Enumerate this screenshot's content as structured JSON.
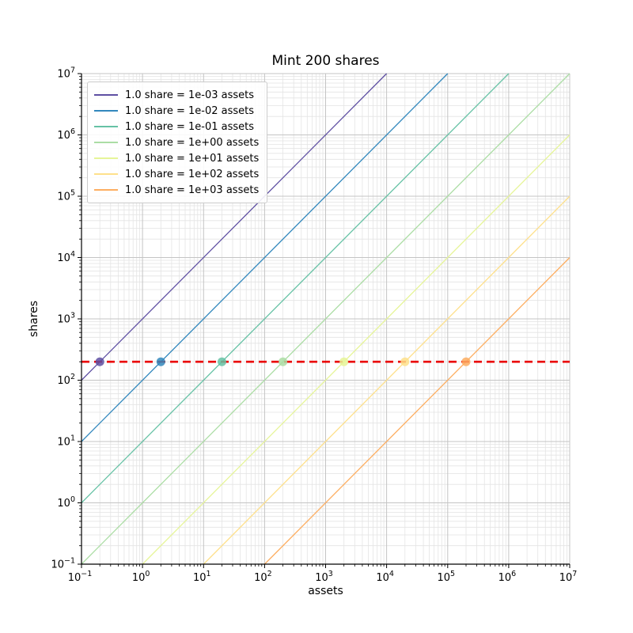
{
  "chart_data": {
    "type": "line",
    "title": "Mint 200 shares",
    "xlabel": "assets",
    "ylabel": "shares",
    "xscale": "log",
    "yscale": "log",
    "xlim": [
      0.1,
      10000000
    ],
    "ylim": [
      0.1,
      10000000
    ],
    "x_tick_exponents": [
      -1,
      0,
      1,
      2,
      3,
      4,
      5,
      6,
      7
    ],
    "y_tick_exponents": [
      -1,
      0,
      1,
      2,
      3,
      4,
      5,
      6,
      7
    ],
    "grid": "both",
    "legend_position": "upper-left",
    "series": [
      {
        "label": "1.0 share = 1e-03 assets",
        "assets_per_share": 0.001,
        "color": "#5e4fa2"
      },
      {
        "label": "1.0 share = 1e-02 assets",
        "assets_per_share": 0.01,
        "color": "#3288bd"
      },
      {
        "label": "1.0 share = 1e-01 assets",
        "assets_per_share": 0.1,
        "color": "#66c2a5"
      },
      {
        "label": "1.0 share = 1e+00 assets",
        "assets_per_share": 1,
        "color": "#abdda4"
      },
      {
        "label": "1.0 share = 1e+01 assets",
        "assets_per_share": 10,
        "color": "#e6f598"
      },
      {
        "label": "1.0 share = 1e+02 assets",
        "assets_per_share": 100,
        "color": "#fee08b"
      },
      {
        "label": "1.0 share = 1e+03 assets",
        "assets_per_share": 1000,
        "color": "#fdae61"
      }
    ],
    "hline": {
      "y": 200,
      "color": "#ea0000",
      "dash": [
        10,
        6
      ],
      "width": 2.6
    },
    "markers": [
      {
        "x": 0.2,
        "y": 200,
        "color": "#5e4fa2"
      },
      {
        "x": 2,
        "y": 200,
        "color": "#3288bd"
      },
      {
        "x": 20,
        "y": 200,
        "color": "#66c2a5"
      },
      {
        "x": 200,
        "y": 200,
        "color": "#abdda4"
      },
      {
        "x": 2000,
        "y": 200,
        "color": "#e6f598"
      },
      {
        "x": 20000,
        "y": 200,
        "color": "#fee08b"
      },
      {
        "x": 200000,
        "y": 200,
        "color": "#fdae61"
      }
    ],
    "colors": {
      "major_grid": "#c4c4c4",
      "minor_grid": "#e4e4e4",
      "spine": "#000000",
      "background": "#ffffff"
    }
  }
}
